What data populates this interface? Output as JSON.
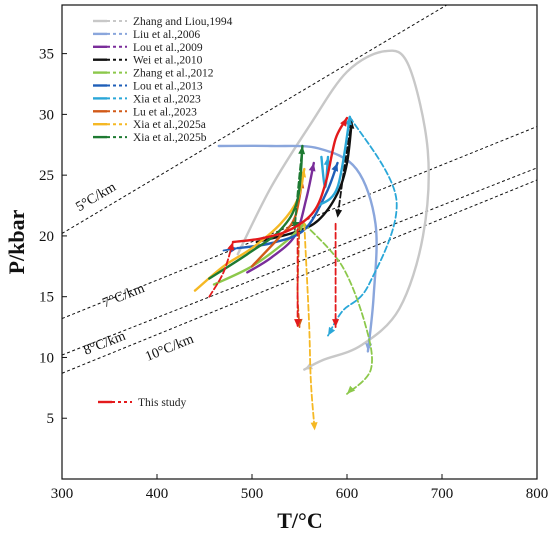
{
  "chart_data": {
    "type": "line",
    "title": "",
    "xlabel": "T/°C",
    "ylabel": "P/kbar",
    "xlim": [
      300,
      800
    ],
    "ylim": [
      0,
      39
    ],
    "x_ticks": [
      300,
      400,
      500,
      600,
      700,
      800
    ],
    "y_ticks": [
      5,
      10,
      15,
      20,
      25,
      30,
      35
    ],
    "grid": false,
    "legend_position": "top-left",
    "geotherms": [
      {
        "label": "5°C/km",
        "points": [
          [
            300,
            20.2
          ],
          [
            705,
            39
          ]
        ],
        "label_at": [
          318,
          22.0
        ]
      },
      {
        "label": "7°C/km",
        "points": [
          [
            300,
            13.2
          ],
          [
            800,
            29.0
          ]
        ],
        "label_at": [
          345,
          14.1
        ]
      },
      {
        "label": "8°C/km",
        "points": [
          [
            300,
            10.2
          ],
          [
            800,
            25.6
          ]
        ],
        "label_at": [
          325,
          10.2
        ]
      },
      {
        "label": "10°C/km",
        "points": [
          [
            300,
            8.7
          ],
          [
            800,
            24.6
          ]
        ],
        "label_at": [
          390,
          9.7
        ]
      }
    ],
    "series": [
      {
        "name": "Zhang and Liou,1994",
        "color": "#c8c8c8",
        "dashed": false,
        "points": [
          [
            485,
            18.5
          ],
          [
            520,
            24
          ],
          [
            560,
            29
          ],
          [
            600,
            33.5
          ],
          [
            640,
            35.2
          ],
          [
            665,
            34
          ],
          [
            685,
            27
          ],
          [
            680,
            20
          ],
          [
            655,
            14
          ],
          [
            615,
            11
          ],
          [
            575,
            9.8
          ],
          [
            555,
            9
          ]
        ]
      },
      {
        "name": "Liu et al.,2006",
        "color": "#8aa6dc",
        "dashed": false,
        "points": [
          [
            465,
            27.4
          ],
          [
            520,
            27.4
          ],
          [
            570,
            27.2
          ],
          [
            610,
            25.5
          ],
          [
            630,
            21
          ],
          [
            628,
            15
          ],
          [
            622,
            10.5
          ]
        ]
      },
      {
        "name": "Lou et al.,2009",
        "color": "#7a2d9a",
        "dashed": false,
        "points": [
          [
            495,
            17
          ],
          [
            520,
            18.2
          ],
          [
            545,
            20
          ],
          [
            557,
            23
          ],
          [
            565,
            26
          ]
        ]
      },
      {
        "name": "Wei et al.,2010",
        "color": "#111111",
        "dashed": false,
        "points": [
          [
            505,
            19.5
          ],
          [
            545,
            20.3
          ],
          [
            570,
            21.3
          ],
          [
            590,
            23.5
          ],
          [
            600,
            26
          ],
          [
            605,
            29.5
          ]
        ]
      },
      {
        "name": "Wei et al.,2010 retro",
        "color": "#111111",
        "dashed": true,
        "points": [
          [
            605,
            29.5
          ],
          [
            597,
            25.5
          ],
          [
            590,
            21.5
          ]
        ]
      },
      {
        "name": "Zhang et al.,2012",
        "color": "#8cc84b",
        "dashed": false,
        "points": [
          [
            460,
            16
          ],
          [
            500,
            17.5
          ],
          [
            535,
            19.5
          ],
          [
            555,
            21
          ]
        ]
      },
      {
        "name": "Zhang et al.,2012 retro",
        "color": "#8cc84b",
        "dashed": true,
        "points": [
          [
            555,
            21
          ],
          [
            595,
            17.5
          ],
          [
            620,
            12.5
          ],
          [
            625,
            9
          ],
          [
            600,
            7
          ]
        ]
      },
      {
        "name": "Lou et al.,2013",
        "color": "#1f5fb8",
        "dashed": false,
        "points": [
          [
            485,
            19
          ],
          [
            520,
            19.4
          ],
          [
            555,
            20.5
          ],
          [
            578,
            23.5
          ],
          [
            590,
            26
          ]
        ]
      },
      {
        "name": "Lou et al.,2013 prograde",
        "color": "#1f5fb8",
        "dashed": true,
        "points": [
          [
            470,
            18.8
          ],
          [
            485,
            19
          ]
        ]
      },
      {
        "name": "Xia et al.,2023",
        "color": "#2aa7d8",
        "dashed": false,
        "points": [
          [
            570,
            22.5
          ],
          [
            590,
            24
          ],
          [
            603,
            29.8
          ]
        ]
      },
      {
        "name": "Xia et al.,2023 retro",
        "color": "#2aa7d8",
        "dashed": true,
        "points": [
          [
            603,
            29.8
          ],
          [
            652,
            23
          ],
          [
            623,
            16
          ],
          [
            595,
            13.8
          ],
          [
            580,
            11.8
          ]
        ]
      },
      {
        "name": "Xia et al.,2023 loop",
        "color": "#2aa7d8",
        "dashed": false,
        "points": [
          [
            573,
            26.5
          ],
          [
            577,
            24
          ],
          [
            580,
            26.5
          ]
        ]
      },
      {
        "name": "Lu et al.,2023",
        "color": "#d25a18",
        "dashed": false,
        "points": [
          [
            500,
            17.5
          ],
          [
            530,
            20
          ],
          [
            545,
            21.5
          ],
          [
            553,
            24.6
          ]
        ]
      },
      {
        "name": "Lu et al.,2023 retro",
        "color": "#d25a18",
        "dashed": true,
        "points": [
          [
            550,
            21
          ],
          [
            548,
            15.5
          ],
          [
            550,
            12.5
          ]
        ]
      },
      {
        "name": "Xia et al.,2025a",
        "color": "#f5b824",
        "dashed": false,
        "points": [
          [
            440,
            15.5
          ],
          [
            470,
            17.5
          ],
          [
            500,
            19
          ],
          [
            530,
            21
          ],
          [
            548,
            23
          ],
          [
            555,
            25.5
          ]
        ]
      },
      {
        "name": "Xia et al.,2025a retro",
        "color": "#f5b824",
        "dashed": true,
        "points": [
          [
            555,
            21
          ],
          [
            560,
            13
          ],
          [
            562,
            8
          ],
          [
            566,
            4
          ]
        ]
      },
      {
        "name": "Xia et al.,2025b",
        "color": "#1e7a32",
        "dashed": false,
        "points": [
          [
            455,
            16.5
          ],
          [
            495,
            18.5
          ],
          [
            530,
            20.5
          ],
          [
            548,
            23
          ],
          [
            553,
            27.4
          ]
        ]
      },
      {
        "name": "Xia et al.,2025b retro",
        "color": "#1e7a32",
        "dashed": true,
        "points": [
          [
            553,
            27.4
          ],
          [
            548,
            23.5
          ],
          [
            545,
            20.5
          ]
        ]
      },
      {
        "name": "This study",
        "color": "#e31a1c",
        "dashed": false,
        "points": [
          [
            480,
            19.5
          ],
          [
            510,
            19.8
          ],
          [
            540,
            20.5
          ],
          [
            565,
            22
          ],
          [
            578,
            24.5
          ],
          [
            588,
            28
          ],
          [
            600,
            29.7
          ]
        ]
      },
      {
        "name": "This study prograde",
        "color": "#e31a1c",
        "dashed": true,
        "points": [
          [
            455,
            15
          ],
          [
            470,
            17
          ],
          [
            480,
            19.5
          ]
        ]
      },
      {
        "name": "This study retro",
        "color": "#e31a1c",
        "dashed": true,
        "points": [
          [
            548,
            20.5
          ],
          [
            548,
            12.5
          ]
        ]
      },
      {
        "name": "This study retro 2",
        "color": "#e31a1c",
        "dashed": true,
        "points": [
          [
            588,
            21
          ],
          [
            588,
            12.5
          ]
        ]
      }
    ],
    "legend": [
      {
        "label": "Zhang and Liou,1994",
        "color": "#c8c8c8"
      },
      {
        "label": "Liu et al.,2006",
        "color": "#8aa6dc"
      },
      {
        "label": "Lou et al.,2009",
        "color": "#7a2d9a"
      },
      {
        "label": "Wei et al.,2010",
        "color": "#111111"
      },
      {
        "label": "Zhang et al.,2012",
        "color": "#8cc84b"
      },
      {
        "label": "Lou et al.,2013",
        "color": "#1f5fb8"
      },
      {
        "label": "Xia et al.,2023",
        "color": "#2aa7d8"
      },
      {
        "label": "Lu et al.,2023",
        "color": "#d25a18"
      },
      {
        "label": "Xia et al.,2025a",
        "color": "#f5b824"
      },
      {
        "label": "Xia et al.,2025b",
        "color": "#1e7a32"
      }
    ],
    "legend_this_study": {
      "label": "This study",
      "color": "#e31a1c"
    }
  }
}
